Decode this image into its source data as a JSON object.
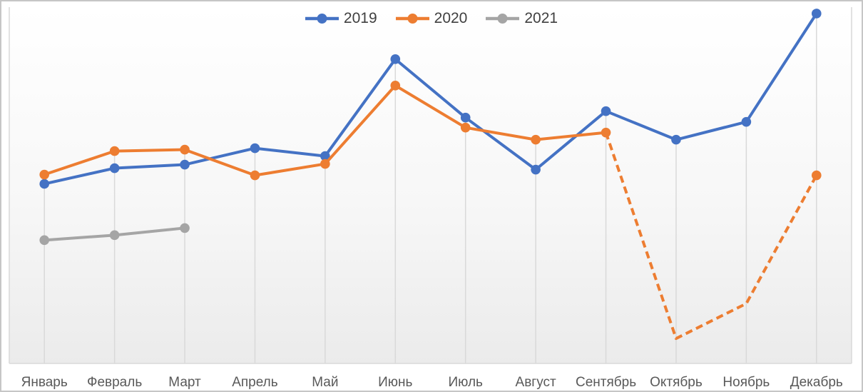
{
  "chart_data": {
    "type": "line",
    "title": "",
    "x_categories": [
      "Январь",
      "Февраль",
      "Март",
      "Апрель",
      "Май",
      "Июнь",
      "Июль",
      "Август",
      "Сентябрь",
      "Октябрь",
      "Ноябрь",
      "Декабрь"
    ],
    "ylim": [
      0,
      500
    ],
    "y_axis_visible": false,
    "grid": "vertical-drop-lines",
    "legend_position": "top-center",
    "series": [
      {
        "name": "2019",
        "color": "#4472C4",
        "style": "solid",
        "marker": "circle",
        "values": [
          252,
          274,
          279,
          302,
          291,
          427,
          345,
          272,
          354,
          314,
          339,
          491
        ]
      },
      {
        "name": "2020",
        "color": "#ED7D31",
        "style": "solid-then-dashed",
        "dashed_from_index": 8,
        "marker": "circle",
        "marker_skip_indices": [
          9,
          10
        ],
        "values": [
          265,
          298,
          300,
          264,
          280,
          390,
          331,
          314,
          324,
          35,
          84,
          264
        ]
      },
      {
        "name": "2021",
        "color": "#A5A5A5",
        "style": "solid",
        "marker": "circle",
        "values": [
          173,
          180,
          190,
          null,
          null,
          null,
          null,
          null,
          null,
          null,
          null,
          null
        ]
      }
    ],
    "colors": {
      "gridline": "#D9D9D9",
      "axis_line": "#D9D9D9",
      "x_label_text": "#595959",
      "legend_text": "#404040",
      "border": "#C6C6C6",
      "plot_bg_top": "#FFFFFF",
      "plot_bg_bottom": "#EBEBEB"
    }
  }
}
